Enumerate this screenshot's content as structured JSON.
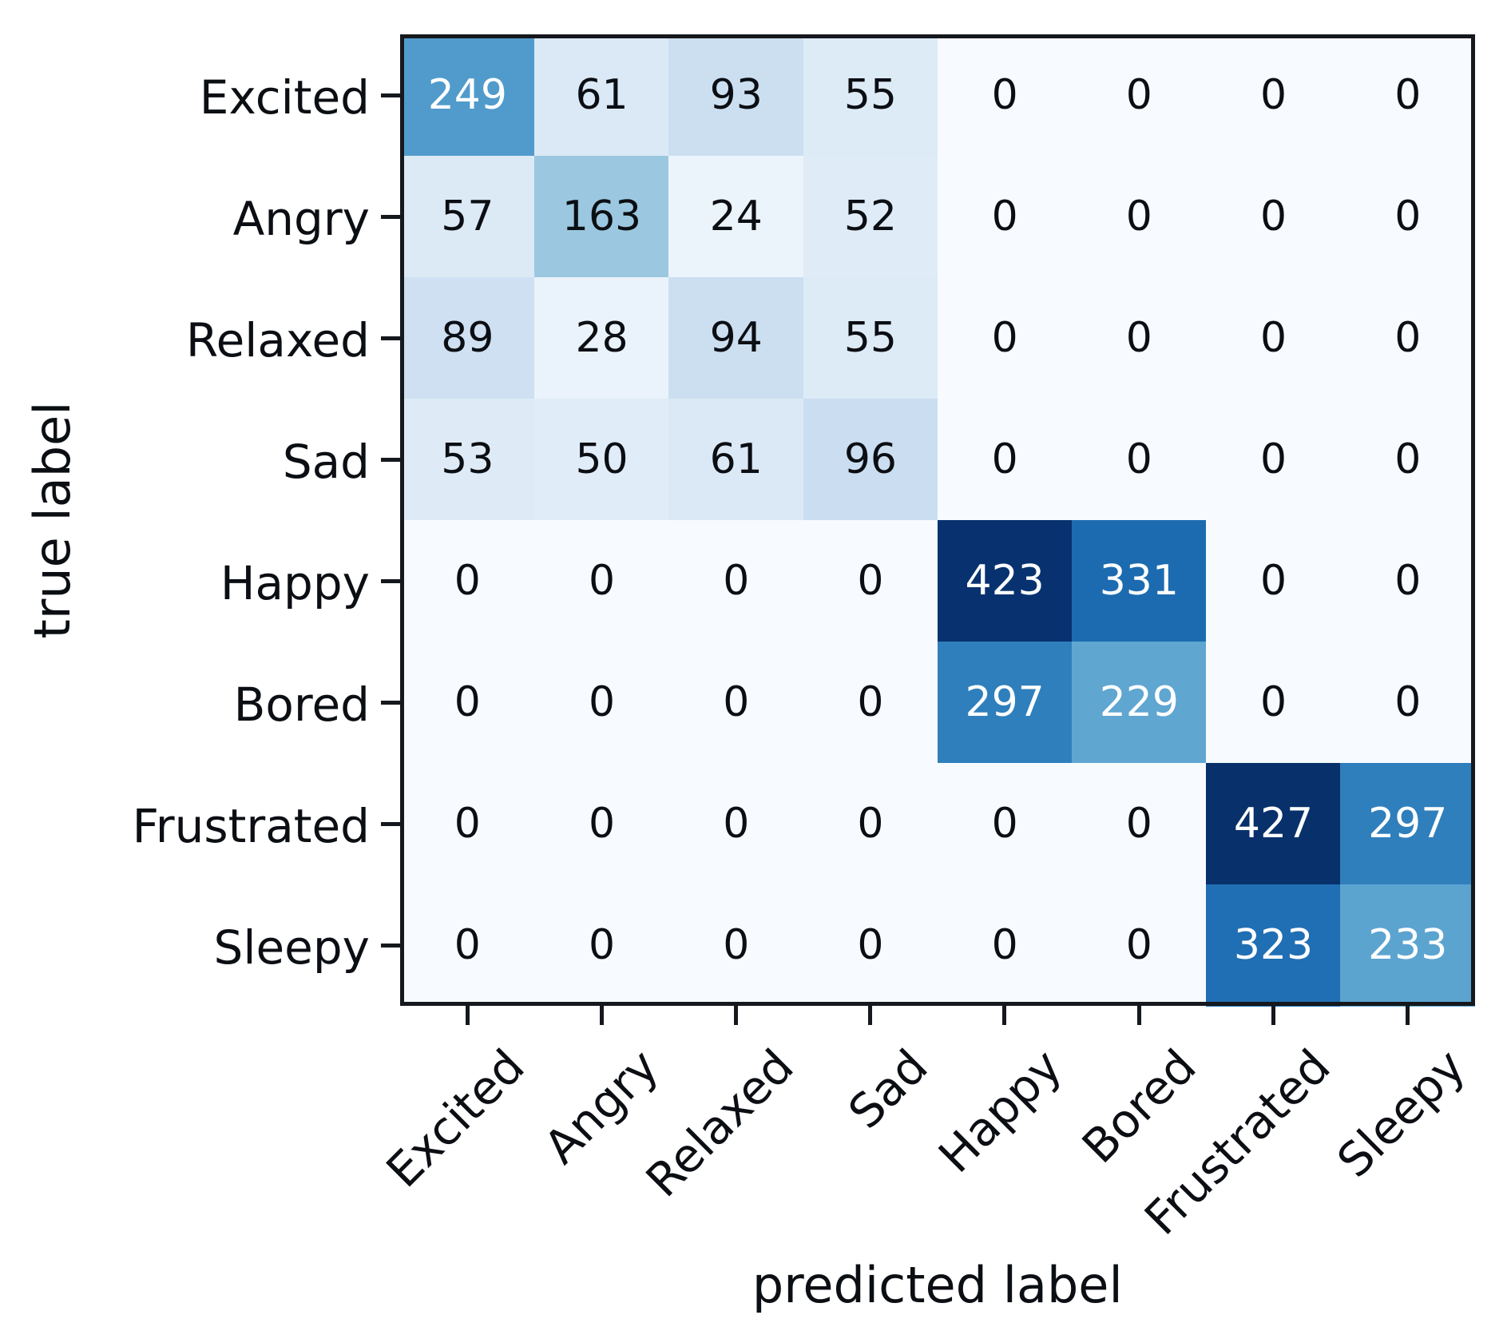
{
  "chart_data": {
    "type": "heatmap",
    "title": "",
    "xlabel": "predicted label",
    "ylabel": "true label",
    "x_tick_labels": [
      "Excited",
      "Angry",
      "Relaxed",
      "Sad",
      "Happy",
      "Bored",
      "Frustrated",
      "Sleepy"
    ],
    "y_tick_labels": [
      "Excited",
      "Angry",
      "Relaxed",
      "Sad",
      "Happy",
      "Bored",
      "Frustrated",
      "Sleepy"
    ],
    "matrix": [
      [
        249,
        61,
        93,
        55,
        0,
        0,
        0,
        0
      ],
      [
        57,
        163,
        24,
        52,
        0,
        0,
        0,
        0
      ],
      [
        89,
        28,
        94,
        55,
        0,
        0,
        0,
        0
      ],
      [
        53,
        50,
        61,
        96,
        0,
        0,
        0,
        0
      ],
      [
        0,
        0,
        0,
        0,
        423,
        331,
        0,
        0
      ],
      [
        0,
        0,
        0,
        0,
        297,
        229,
        0,
        0
      ],
      [
        0,
        0,
        0,
        0,
        0,
        0,
        427,
        297
      ],
      [
        0,
        0,
        0,
        0,
        0,
        0,
        323,
        233
      ]
    ],
    "vmin": 0,
    "vmax": 427,
    "value_text_threshold": 213.5,
    "colormap": "Blues",
    "colormap_stops": [
      "#f7fbff",
      "#deebf7",
      "#c6dbef",
      "#9ecae1",
      "#6baed6",
      "#4292c6",
      "#2171b5",
      "#08519c",
      "#08306b"
    ],
    "colors": {
      "figure_background": "#ffffff",
      "spine": "#15181d",
      "tick": "#15181d",
      "value_text_dark": "#0b0e13",
      "value_text_light": "#ffffff"
    },
    "legend": "none",
    "grid": "off"
  }
}
